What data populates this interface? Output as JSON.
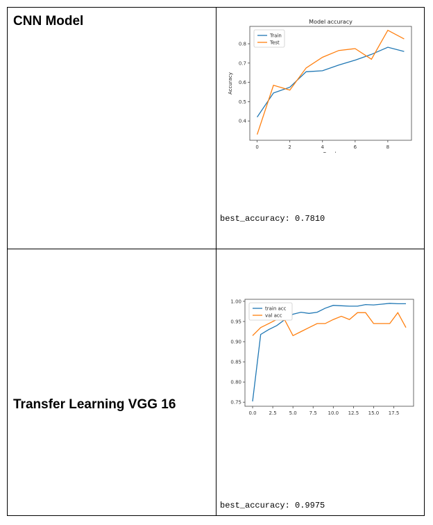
{
  "rows": [
    {
      "model_name": "CNN Model",
      "best_accuracy_text": "best_accuracy: 0.7810"
    },
    {
      "model_name": "Transfer Learning VGG 16",
      "best_accuracy_text": "best_accuracy: 0.9975"
    }
  ],
  "chart_data": [
    {
      "type": "line",
      "title": "Model accuracy",
      "xlabel": "Epoch",
      "ylabel": "Accuracy",
      "xlim": [
        -0.45,
        9.45
      ],
      "ylim": [
        0.3,
        0.89
      ],
      "xticks": [
        0,
        2,
        4,
        6,
        8
      ],
      "yticks": [
        0.4,
        0.5,
        0.6,
        0.7,
        0.8
      ],
      "xtick_labels": [
        "0",
        "2",
        "4",
        "6",
        "8"
      ],
      "ytick_labels": [
        "0.4",
        "0.5",
        "0.6",
        "0.7",
        "0.8"
      ],
      "legend_position": "top-left",
      "grid": false,
      "x": [
        0,
        1,
        2,
        3,
        4,
        5,
        6,
        7,
        8,
        9
      ],
      "series": [
        {
          "name": "Train",
          "color": "#1f77b4",
          "values": [
            0.42,
            0.545,
            0.575,
            0.655,
            0.66,
            0.69,
            0.715,
            0.745,
            0.782,
            0.76
          ]
        },
        {
          "name": "Test",
          "color": "#ff7f0e",
          "values": [
            0.33,
            0.585,
            0.56,
            0.675,
            0.73,
            0.765,
            0.775,
            0.72,
            0.87,
            0.825
          ]
        }
      ]
    },
    {
      "type": "line",
      "title": "",
      "xlabel": "",
      "ylabel": "",
      "xlim": [
        -0.95,
        19.95
      ],
      "ylim": [
        0.74,
        1.005
      ],
      "xticks": [
        0,
        2.5,
        5,
        7.5,
        10,
        12.5,
        15,
        17.5
      ],
      "yticks": [
        0.75,
        0.8,
        0.85,
        0.9,
        0.95,
        1.0
      ],
      "xtick_labels": [
        "0.0",
        "2.5",
        "5.0",
        "7.5",
        "10.0",
        "12.5",
        "15.0",
        "17.5"
      ],
      "ytick_labels": [
        "0.75",
        "0.80",
        "0.85",
        "0.90",
        "0.95",
        "1.00"
      ],
      "legend_position": "top-left",
      "grid": false,
      "x": [
        0,
        1,
        2,
        3,
        4,
        5,
        6,
        7,
        8,
        9,
        10,
        11,
        12,
        13,
        14,
        15,
        16,
        17,
        18,
        19
      ],
      "series": [
        {
          "name": "train acc",
          "color": "#1f77b4",
          "values": [
            0.752,
            0.918,
            0.93,
            0.94,
            0.955,
            0.968,
            0.973,
            0.97,
            0.973,
            0.983,
            0.99,
            0.989,
            0.988,
            0.988,
            0.992,
            0.991,
            0.993,
            0.995,
            0.994,
            0.994
          ]
        },
        {
          "name": "val acc",
          "color": "#ff7f0e",
          "values": [
            0.915,
            0.935,
            0.945,
            0.955,
            0.953,
            0.915,
            0.925,
            0.935,
            0.945,
            0.945,
            0.955,
            0.963,
            0.955,
            0.972,
            0.972,
            0.945,
            0.945,
            0.945,
            0.972,
            0.935
          ]
        }
      ]
    }
  ]
}
